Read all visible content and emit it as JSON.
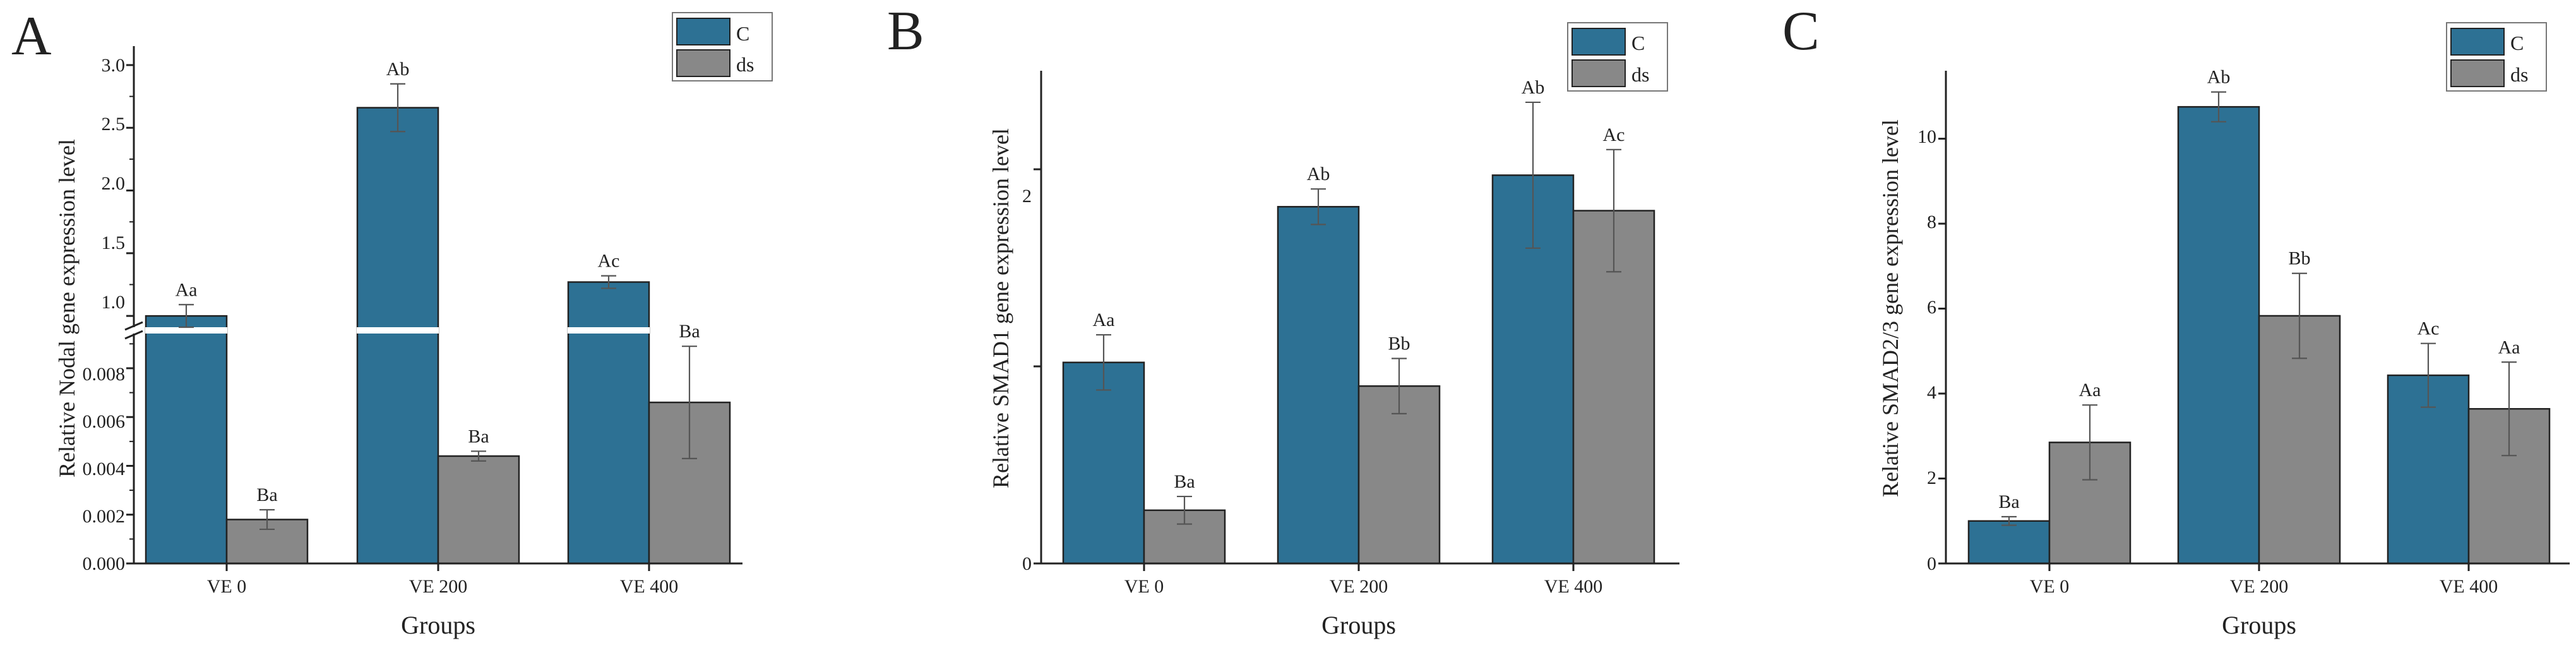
{
  "colors": {
    "C": "#2d7194",
    "ds": "#888888"
  },
  "chart_data": [
    {
      "panel_label": "A",
      "type": "bar",
      "title": "",
      "categories": [
        "VE 0",
        "VE 200",
        "VE 400"
      ],
      "xlabel": "Groups",
      "ylabel": "Relative Nodal gene expression level",
      "axis_break": {
        "lower_range": [
          0,
          0.0095
        ],
        "upper_range": [
          0.9,
          3.0
        ]
      },
      "lower_ticks": [
        "0.000",
        "0.002",
        "0.004",
        "0.006",
        "0.008"
      ],
      "upper_ticks": [
        "1.0",
        "1.5",
        "2.0",
        "2.5",
        "3.0"
      ],
      "legend": [
        "C",
        "ds"
      ],
      "series": [
        {
          "name": "C",
          "values": [
            1.0,
            2.66,
            1.27
          ],
          "errors": [
            0.09,
            0.19,
            0.05
          ],
          "labels": [
            "Aa",
            "Ab",
            "Ac"
          ]
        },
        {
          "name": "ds",
          "values": [
            0.0018,
            0.0044,
            0.0066
          ],
          "errors": [
            0.0004,
            0.0002,
            0.0023
          ],
          "labels": [
            "Ba",
            "Ba",
            "Ba"
          ]
        }
      ]
    },
    {
      "panel_label": "B",
      "type": "bar",
      "title": "",
      "categories": [
        "VE 0",
        "VE 200",
        "VE 400"
      ],
      "xlabel": "Groups",
      "ylabel": "Relative SMAD1 gene expression level",
      "ylim": [
        0,
        2.5
      ],
      "ticks": [
        "0",
        "2"
      ],
      "legend": [
        "C",
        "ds"
      ],
      "series": [
        {
          "name": "C",
          "values": [
            1.02,
            1.81,
            1.97
          ],
          "errors": [
            0.14,
            0.09,
            0.37
          ],
          "labels": [
            "Aa",
            "Ab",
            "Ab"
          ]
        },
        {
          "name": "ds",
          "values": [
            0.27,
            0.9,
            1.79
          ],
          "errors": [
            0.07,
            0.14,
            0.31
          ],
          "labels": [
            "Ba",
            "Bb",
            "Ac"
          ]
        }
      ]
    },
    {
      "panel_label": "C",
      "type": "bar",
      "title": "",
      "categories": [
        "VE 0",
        "VE 200",
        "VE 400"
      ],
      "xlabel": "Groups",
      "ylabel": "Relative SMAD2/3 gene expression level",
      "ylim": [
        0,
        11.6
      ],
      "ticks": [
        "0",
        "2",
        "4",
        "6",
        "8",
        "10"
      ],
      "legend": [
        "C",
        "ds"
      ],
      "series": [
        {
          "name": "C",
          "values": [
            1.0,
            10.75,
            4.43
          ],
          "errors": [
            0.1,
            0.35,
            0.75
          ],
          "labels": [
            "Ba",
            "Ab",
            "Ac"
          ]
        },
        {
          "name": "ds",
          "values": [
            2.85,
            5.83,
            3.64
          ],
          "errors": [
            0.88,
            1.0,
            1.1
          ],
          "labels": [
            "Aa",
            "Bb",
            "Aa"
          ]
        }
      ]
    }
  ]
}
